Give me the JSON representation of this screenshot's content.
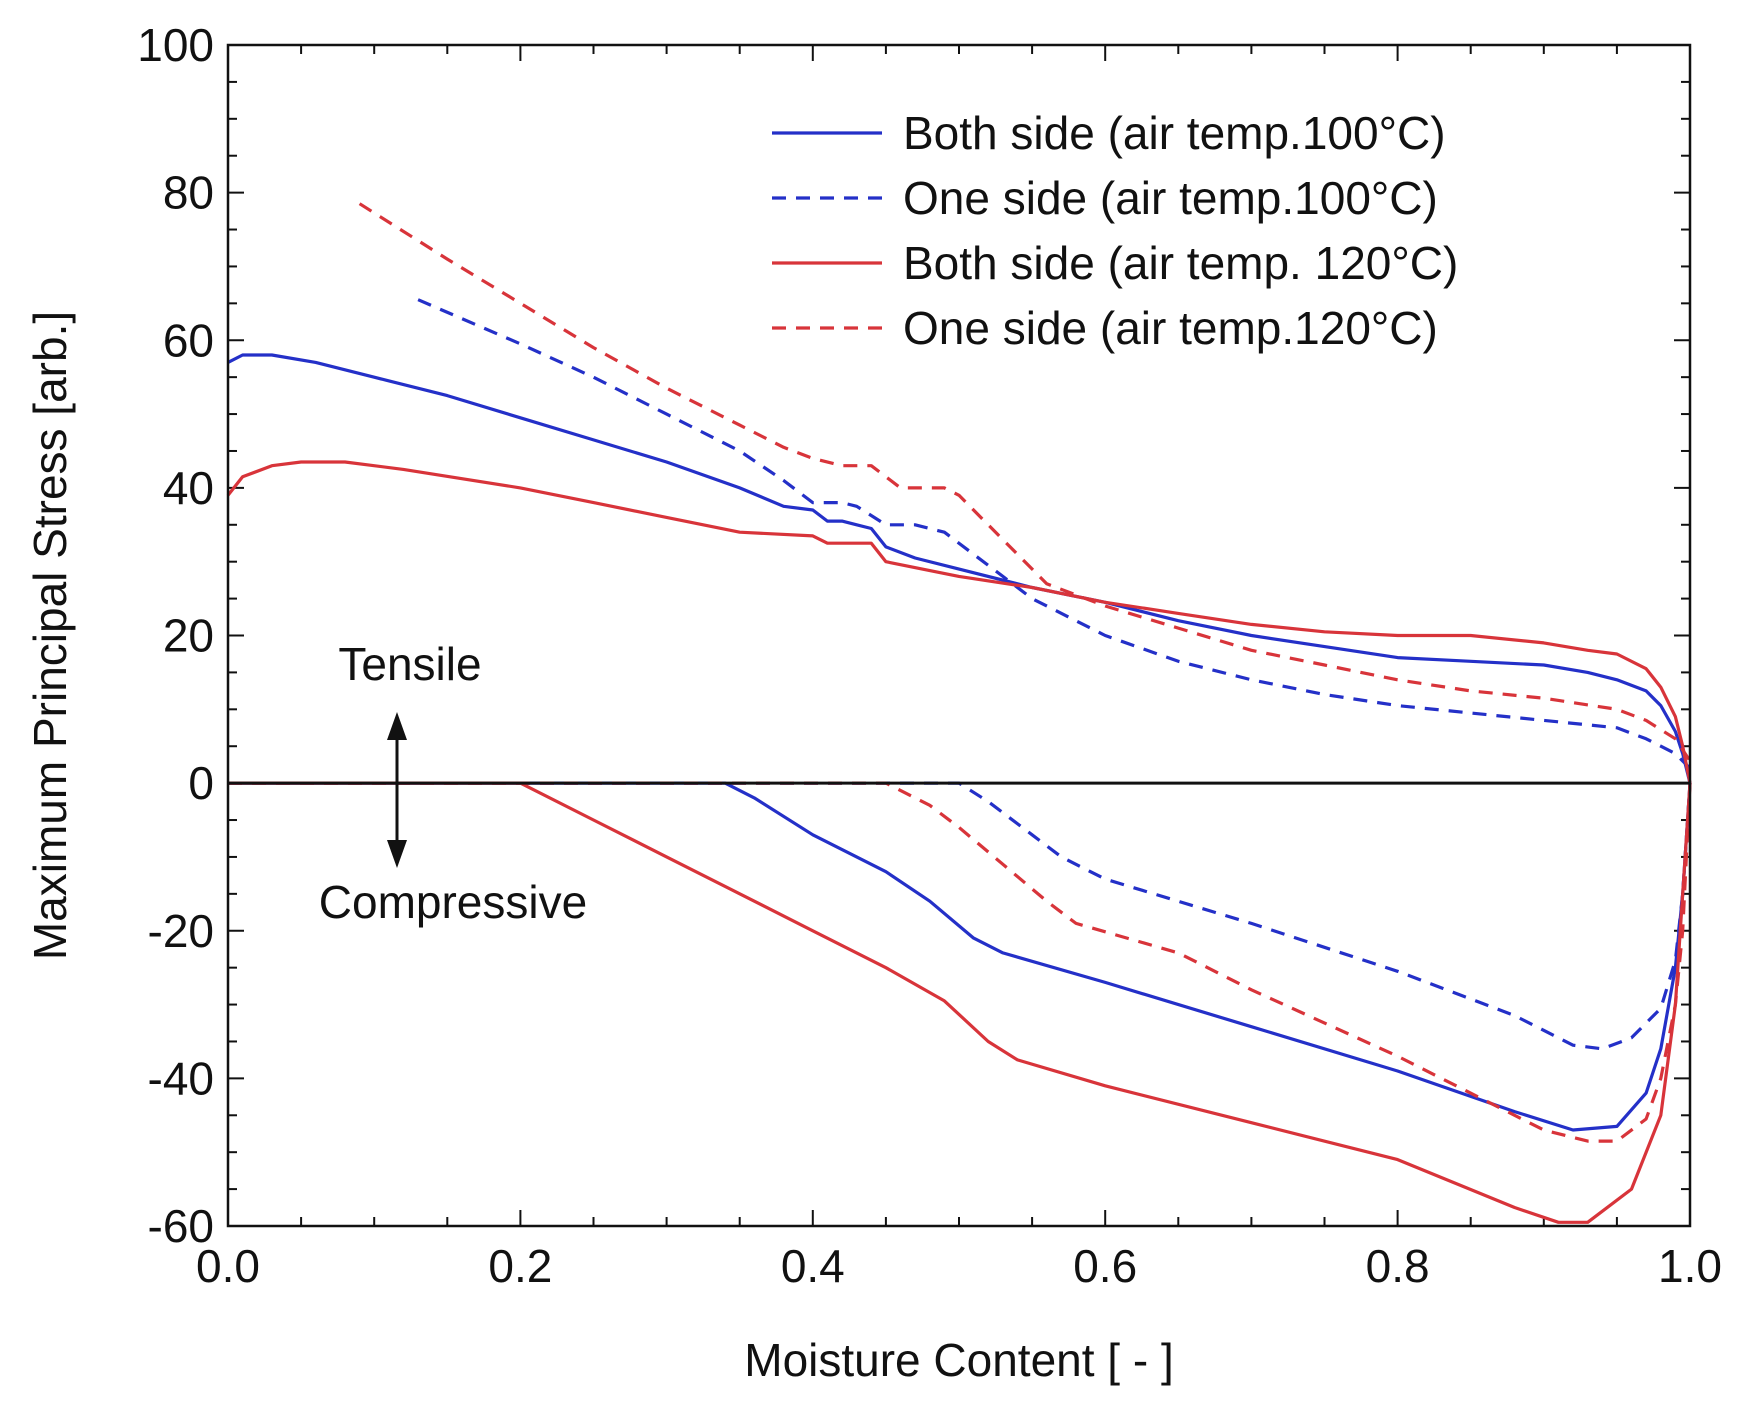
{
  "chart_data": {
    "type": "line",
    "title": "",
    "xlabel": "Moisture Content  [ - ]",
    "ylabel": "Maximum Principal Stress  [arb.]",
    "xlim": [
      0.0,
      1.0
    ],
    "ylim": [
      -60,
      100
    ],
    "x_ticks": [
      0.0,
      0.2,
      0.4,
      0.6,
      0.8,
      1.0
    ],
    "x_tick_labels": [
      "0.0",
      "0.2",
      "0.4",
      "0.6",
      "0.8",
      "1.0"
    ],
    "y_ticks": [
      -60,
      -40,
      -20,
      0,
      20,
      40,
      60,
      80,
      100
    ],
    "y_tick_labels": [
      "-60",
      "-40",
      "-20",
      "0",
      "20",
      "40",
      "60",
      "80",
      "100"
    ],
    "x_minor_step": 0.05,
    "y_minor_step": 5,
    "legend_position": "top-right",
    "colors": {
      "blue": "#2430c8",
      "red": "#d8343a",
      "axis": "#111111"
    },
    "annotations": {
      "tensile": "Tensile",
      "compressive": "Compressive"
    },
    "series": [
      {
        "name": "Both side (air temp.100°C)",
        "color": "#2430c8",
        "style": "solid",
        "role": "tensile",
        "points": [
          [
            0.0,
            57
          ],
          [
            0.01,
            58
          ],
          [
            0.03,
            58
          ],
          [
            0.06,
            57
          ],
          [
            0.1,
            55
          ],
          [
            0.15,
            52.5
          ],
          [
            0.2,
            49.5
          ],
          [
            0.25,
            46.5
          ],
          [
            0.3,
            43.5
          ],
          [
            0.35,
            40
          ],
          [
            0.38,
            37.5
          ],
          [
            0.4,
            37
          ],
          [
            0.41,
            35.5
          ],
          [
            0.42,
            35.5
          ],
          [
            0.43,
            35
          ],
          [
            0.44,
            34.5
          ],
          [
            0.45,
            32
          ],
          [
            0.47,
            30.5
          ],
          [
            0.5,
            29
          ],
          [
            0.55,
            26.5
          ],
          [
            0.6,
            24.5
          ],
          [
            0.65,
            22
          ],
          [
            0.7,
            20
          ],
          [
            0.75,
            18.5
          ],
          [
            0.8,
            17
          ],
          [
            0.85,
            16.5
          ],
          [
            0.9,
            16
          ],
          [
            0.93,
            15
          ],
          [
            0.95,
            14
          ],
          [
            0.97,
            12.5
          ],
          [
            0.98,
            10.5
          ],
          [
            0.99,
            7
          ],
          [
            0.995,
            4
          ],
          [
            1.0,
            0
          ]
        ]
      },
      {
        "name": "One side (air temp.100°C)",
        "color": "#2430c8",
        "style": "dashed",
        "role": "tensile",
        "points": [
          [
            0.13,
            65.5
          ],
          [
            0.2,
            59.5
          ],
          [
            0.25,
            55
          ],
          [
            0.3,
            50
          ],
          [
            0.35,
            45
          ],
          [
            0.38,
            41
          ],
          [
            0.4,
            38
          ],
          [
            0.42,
            38
          ],
          [
            0.43,
            37.5
          ],
          [
            0.45,
            35
          ],
          [
            0.47,
            35
          ],
          [
            0.49,
            34
          ],
          [
            0.51,
            31
          ],
          [
            0.53,
            28
          ],
          [
            0.55,
            25
          ],
          [
            0.6,
            20
          ],
          [
            0.65,
            16.5
          ],
          [
            0.7,
            14
          ],
          [
            0.75,
            12
          ],
          [
            0.8,
            10.5
          ],
          [
            0.85,
            9.5
          ],
          [
            0.9,
            8.5
          ],
          [
            0.95,
            7.5
          ],
          [
            0.97,
            6
          ],
          [
            0.99,
            4
          ],
          [
            1.0,
            2
          ]
        ]
      },
      {
        "name": "Both side (air temp. 120°C)",
        "color": "#d8343a",
        "style": "solid",
        "role": "tensile",
        "points": [
          [
            0.0,
            39
          ],
          [
            0.01,
            41.5
          ],
          [
            0.03,
            43
          ],
          [
            0.05,
            43.5
          ],
          [
            0.08,
            43.5
          ],
          [
            0.12,
            42.5
          ],
          [
            0.2,
            40
          ],
          [
            0.25,
            38
          ],
          [
            0.3,
            36
          ],
          [
            0.35,
            34
          ],
          [
            0.4,
            33.5
          ],
          [
            0.41,
            32.5
          ],
          [
            0.43,
            32.5
          ],
          [
            0.44,
            32.5
          ],
          [
            0.45,
            30
          ],
          [
            0.5,
            28
          ],
          [
            0.55,
            26.5
          ],
          [
            0.6,
            24.5
          ],
          [
            0.65,
            23
          ],
          [
            0.7,
            21.5
          ],
          [
            0.75,
            20.5
          ],
          [
            0.8,
            20
          ],
          [
            0.85,
            20
          ],
          [
            0.9,
            19
          ],
          [
            0.93,
            18
          ],
          [
            0.95,
            17.5
          ],
          [
            0.97,
            15.5
          ],
          [
            0.98,
            13
          ],
          [
            0.99,
            9
          ],
          [
            0.995,
            5
          ],
          [
            1.0,
            0
          ]
        ]
      },
      {
        "name": "One side (air temp.120°C)",
        "color": "#d8343a",
        "style": "dashed",
        "role": "tensile",
        "points": [
          [
            0.09,
            78.5
          ],
          [
            0.15,
            71
          ],
          [
            0.2,
            65
          ],
          [
            0.25,
            59
          ],
          [
            0.3,
            53.5
          ],
          [
            0.35,
            48.5
          ],
          [
            0.38,
            45.5
          ],
          [
            0.4,
            44
          ],
          [
            0.42,
            43
          ],
          [
            0.44,
            43
          ],
          [
            0.46,
            40
          ],
          [
            0.49,
            40
          ],
          [
            0.5,
            39
          ],
          [
            0.52,
            35
          ],
          [
            0.54,
            31
          ],
          [
            0.56,
            27
          ],
          [
            0.6,
            24
          ],
          [
            0.65,
            21
          ],
          [
            0.7,
            18
          ],
          [
            0.75,
            16
          ],
          [
            0.8,
            14
          ],
          [
            0.85,
            12.5
          ],
          [
            0.9,
            11.5
          ],
          [
            0.95,
            10
          ],
          [
            0.97,
            8.5
          ],
          [
            0.99,
            6
          ],
          [
            1.0,
            3
          ]
        ]
      },
      {
        "name": "Both side (air temp.100°C) compressive",
        "color": "#2430c8",
        "style": "solid",
        "role": "compressive",
        "points": [
          [
            0.0,
            0
          ],
          [
            0.34,
            0
          ],
          [
            0.36,
            -2
          ],
          [
            0.4,
            -7
          ],
          [
            0.45,
            -12
          ],
          [
            0.48,
            -16
          ],
          [
            0.51,
            -21
          ],
          [
            0.53,
            -23
          ],
          [
            0.6,
            -27
          ],
          [
            0.7,
            -33
          ],
          [
            0.8,
            -39
          ],
          [
            0.88,
            -44.5
          ],
          [
            0.92,
            -47
          ],
          [
            0.95,
            -46.5
          ],
          [
            0.97,
            -42
          ],
          [
            0.98,
            -36
          ],
          [
            0.99,
            -25
          ],
          [
            0.995,
            -15
          ],
          [
            1.0,
            0
          ]
        ]
      },
      {
        "name": "One side (air temp.100°C) compressive",
        "color": "#2430c8",
        "style": "dashed",
        "role": "compressive",
        "points": [
          [
            0.0,
            0
          ],
          [
            0.5,
            0
          ],
          [
            0.52,
            -2.5
          ],
          [
            0.55,
            -7
          ],
          [
            0.57,
            -10
          ],
          [
            0.6,
            -13
          ],
          [
            0.7,
            -19
          ],
          [
            0.8,
            -25.5
          ],
          [
            0.88,
            -31.5
          ],
          [
            0.92,
            -35.5
          ],
          [
            0.94,
            -36
          ],
          [
            0.96,
            -34.5
          ],
          [
            0.98,
            -30.5
          ],
          [
            0.99,
            -24
          ],
          [
            0.995,
            -15
          ],
          [
            1.0,
            0
          ]
        ]
      },
      {
        "name": "Both side (air temp. 120°C) compressive",
        "color": "#d8343a",
        "style": "solid",
        "role": "compressive",
        "points": [
          [
            0.0,
            0
          ],
          [
            0.2,
            0
          ],
          [
            0.25,
            -5
          ],
          [
            0.3,
            -10
          ],
          [
            0.35,
            -15
          ],
          [
            0.4,
            -20
          ],
          [
            0.45,
            -25
          ],
          [
            0.49,
            -29.5
          ],
          [
            0.52,
            -35
          ],
          [
            0.54,
            -37.5
          ],
          [
            0.6,
            -41
          ],
          [
            0.7,
            -46
          ],
          [
            0.8,
            -51
          ],
          [
            0.88,
            -57.5
          ],
          [
            0.91,
            -59.5
          ],
          [
            0.93,
            -59.5
          ],
          [
            0.96,
            -55
          ],
          [
            0.98,
            -45
          ],
          [
            0.99,
            -30
          ],
          [
            0.995,
            -15
          ],
          [
            1.0,
            0
          ]
        ]
      },
      {
        "name": "One side (air temp.120°C) compressive",
        "color": "#d8343a",
        "style": "dashed",
        "role": "compressive",
        "points": [
          [
            0.0,
            0
          ],
          [
            0.45,
            0
          ],
          [
            0.48,
            -3
          ],
          [
            0.5,
            -6
          ],
          [
            0.53,
            -11
          ],
          [
            0.56,
            -16
          ],
          [
            0.58,
            -19
          ],
          [
            0.65,
            -23
          ],
          [
            0.7,
            -28
          ],
          [
            0.8,
            -37
          ],
          [
            0.87,
            -44
          ],
          [
            0.9,
            -47
          ],
          [
            0.93,
            -48.5
          ],
          [
            0.95,
            -48.5
          ],
          [
            0.97,
            -45.5
          ],
          [
            0.98,
            -40
          ],
          [
            0.99,
            -30
          ],
          [
            0.995,
            -20
          ],
          [
            1.0,
            0
          ]
        ]
      }
    ],
    "legend": [
      {
        "label": "Both side (air temp.100°C)",
        "color": "#2430c8",
        "style": "solid"
      },
      {
        "label": "One side (air temp.100°C)",
        "color": "#2430c8",
        "style": "dashed"
      },
      {
        "label": "Both side (air temp. 120°C)",
        "color": "#d8343a",
        "style": "solid"
      },
      {
        "label": "One side (air temp.120°C)",
        "color": "#d8343a",
        "style": "dashed"
      }
    ]
  }
}
